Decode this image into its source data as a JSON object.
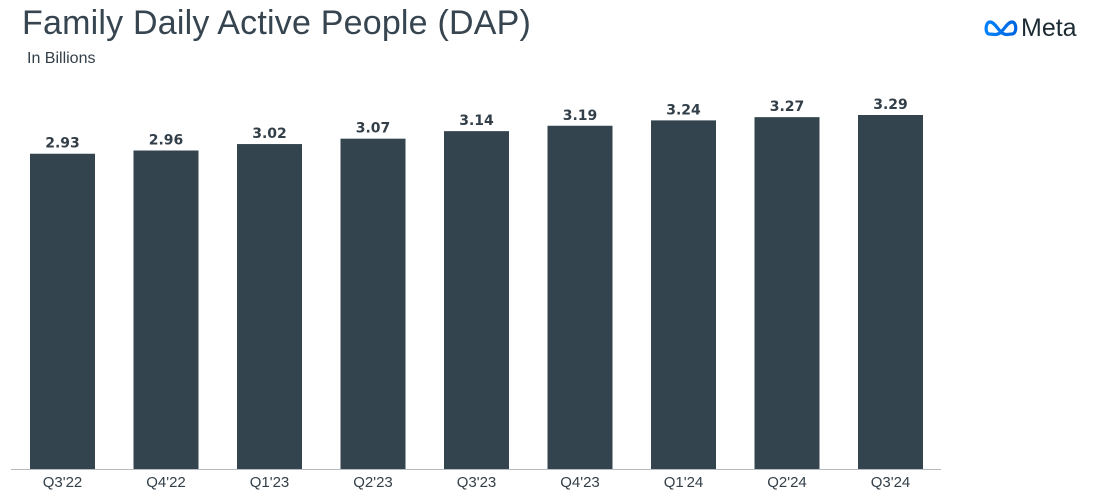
{
  "logo": {
    "word": "Meta",
    "icon": "meta-infinity-icon"
  },
  "colors": {
    "bar": "#34444f",
    "axis": "#b8bcc0",
    "text": "#333f48",
    "logo_blue": "#0668e1"
  },
  "chart_data": {
    "type": "bar",
    "title": "Family Daily Active People (DAP)",
    "subtitle": "In Billions",
    "categories": [
      "Q3'22",
      "Q4'22",
      "Q1'23",
      "Q2'23",
      "Q3'23",
      "Q4'23",
      "Q1'24",
      "Q2'24",
      "Q3'24"
    ],
    "values": [
      2.93,
      2.96,
      3.02,
      3.07,
      3.14,
      3.19,
      3.24,
      3.27,
      3.29
    ],
    "value_labels": [
      "2.93",
      "2.96",
      "3.02",
      "3.07",
      "3.14",
      "3.19",
      "3.24",
      "3.27",
      "3.29"
    ],
    "xlabel": "",
    "ylabel": "",
    "ylim": [
      0,
      3.29
    ],
    "grid": false,
    "legend": "none"
  }
}
